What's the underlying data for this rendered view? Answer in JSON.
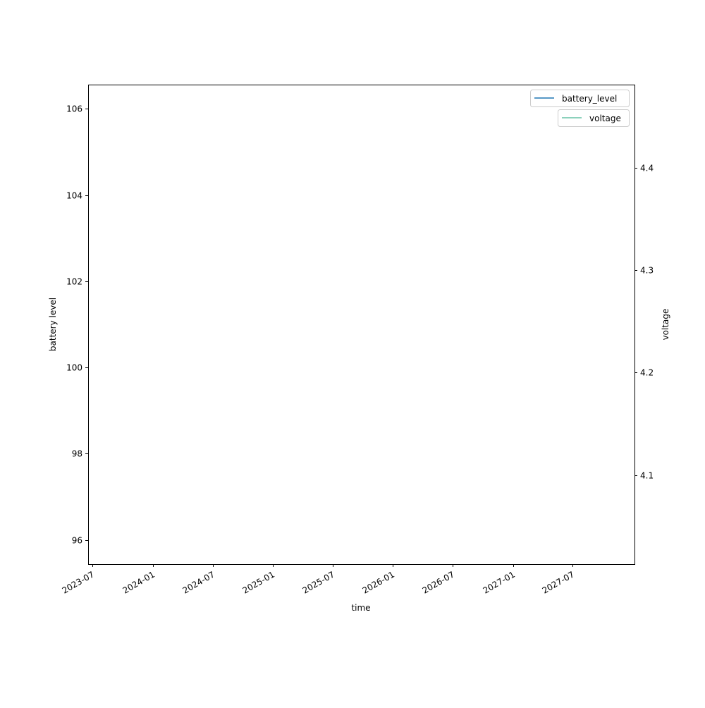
{
  "chart_data": {
    "type": "line",
    "title": "",
    "xlabel": "time",
    "ylabel": "battery level",
    "y2label": "voltage",
    "xlim": [
      "2023-06-18",
      "2028-01-06"
    ],
    "ylim": [
      95.44,
      106.56
    ],
    "y2lim": [
      4.013,
      4.481
    ],
    "x_ticks": [
      "2023-07",
      "2024-01",
      "2024-07",
      "2025-01",
      "2025-07",
      "2026-01",
      "2026-07",
      "2027-01",
      "2027-07"
    ],
    "y_ticks": [
      96,
      98,
      100,
      102,
      104,
      106
    ],
    "y2_ticks": [
      4.1,
      4.2,
      4.3,
      4.4
    ],
    "grid": false,
    "legend_placement": "top-right",
    "series": [
      {
        "name": "battery_level",
        "axis": "left",
        "color": "#1f77b4",
        "x": [],
        "y": []
      },
      {
        "name": "voltage",
        "axis": "right",
        "color": "#66c2a5",
        "x": [],
        "y": []
      }
    ]
  }
}
